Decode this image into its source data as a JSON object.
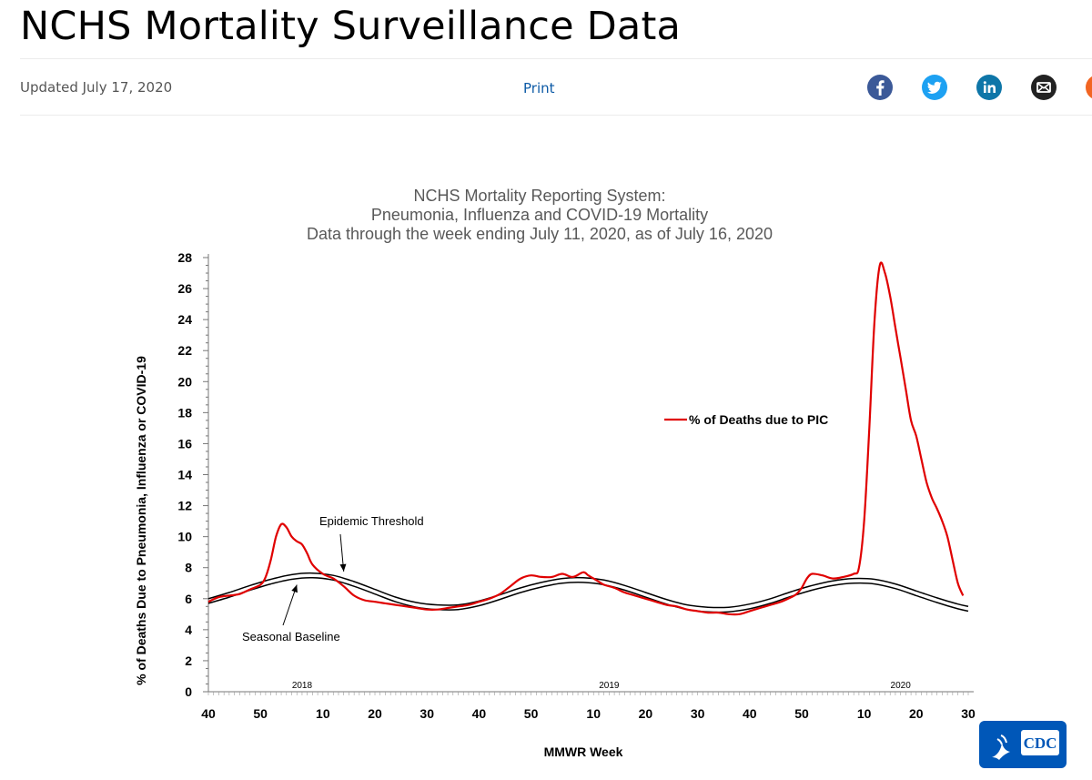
{
  "page": {
    "title": "NCHS Mortality Surveillance Data",
    "updated": "Updated July 17, 2020",
    "print_label": "Print"
  },
  "share": [
    {
      "name": "facebook-icon",
      "color": "#3b5998"
    },
    {
      "name": "twitter-icon",
      "color": "#1da1f2"
    },
    {
      "name": "linkedin-icon",
      "color": "#0e76a8"
    },
    {
      "name": "email-icon",
      "color": "#222222"
    },
    {
      "name": "syndicate-icon",
      "color": "#f26522"
    }
  ],
  "logo": {
    "text": "CDC",
    "color": "#0057b8"
  },
  "chart_data": {
    "type": "line",
    "title_lines": [
      "NCHS Mortality Reporting System:",
      "Pneumonia, Influenza and COVID-19 Mortality",
      "Data through the week ending July 11, 2020, as of July 16, 2020"
    ],
    "xlabel": "MMWR Week",
    "ylabel": "% of Deaths Due to Pneumonia, Influenza or  COVID-19",
    "ylim": [
      0,
      28
    ],
    "yticks": [
      0,
      2,
      4,
      6,
      8,
      10,
      12,
      14,
      16,
      18,
      20,
      22,
      24,
      26,
      28
    ],
    "xlim": [
      0,
      146
    ],
    "xticks": [
      {
        "x": 0,
        "label": "40"
      },
      {
        "x": 10,
        "label": "50"
      },
      {
        "x": 22,
        "label": "10"
      },
      {
        "x": 32,
        "label": "20"
      },
      {
        "x": 42,
        "label": "30"
      },
      {
        "x": 52,
        "label": "40"
      },
      {
        "x": 62,
        "label": "50"
      },
      {
        "x": 74,
        "label": "10"
      },
      {
        "x": 84,
        "label": "20"
      },
      {
        "x": 94,
        "label": "30"
      },
      {
        "x": 104,
        "label": "40"
      },
      {
        "x": 114,
        "label": "50"
      },
      {
        "x": 126,
        "label": "10"
      },
      {
        "x": 136,
        "label": "20"
      },
      {
        "x": 146,
        "label": "30"
      }
    ],
    "year_labels": [
      {
        "x": 18,
        "label": "2018"
      },
      {
        "x": 77,
        "label": "2019"
      },
      {
        "x": 133,
        "label": "2020"
      }
    ],
    "grid": false,
    "legend_position": "right",
    "series": [
      {
        "name": "% of Deaths due to PIC",
        "color": "#e00000",
        "x": [
          0,
          2,
          4,
          6,
          8,
          10,
          11,
          12,
          13,
          14,
          15,
          16,
          17,
          18,
          19,
          20,
          22,
          24,
          26,
          28,
          30,
          32,
          34,
          36,
          38,
          40,
          42,
          44,
          46,
          48,
          50,
          52,
          54,
          56,
          58,
          60,
          62,
          64,
          66,
          68,
          70,
          72,
          73,
          74,
          75,
          76,
          78,
          80,
          82,
          84,
          86,
          88,
          90,
          92,
          94,
          96,
          98,
          100,
          102,
          104,
          106,
          108,
          110,
          112,
          113,
          114,
          115,
          116,
          118,
          120,
          122,
          124,
          125,
          126,
          127,
          128,
          129,
          130,
          131,
          132,
          133,
          134,
          135,
          136,
          137,
          138,
          139,
          140,
          141,
          142,
          143,
          144,
          145
        ],
        "y": [
          5.8,
          6.1,
          6.2,
          6.3,
          6.6,
          6.9,
          7.4,
          8.5,
          10.0,
          10.8,
          10.6,
          10.0,
          9.7,
          9.5,
          8.9,
          8.2,
          7.6,
          7.3,
          6.8,
          6.2,
          5.9,
          5.8,
          5.7,
          5.6,
          5.5,
          5.4,
          5.3,
          5.3,
          5.4,
          5.5,
          5.6,
          5.8,
          6.0,
          6.3,
          6.8,
          7.3,
          7.5,
          7.4,
          7.4,
          7.6,
          7.4,
          7.7,
          7.5,
          7.3,
          7.1,
          6.9,
          6.7,
          6.4,
          6.2,
          6.0,
          5.8,
          5.6,
          5.5,
          5.3,
          5.2,
          5.1,
          5.1,
          5.0,
          5.0,
          5.2,
          5.4,
          5.6,
          5.8,
          6.1,
          6.3,
          6.7,
          7.3,
          7.6,
          7.5,
          7.3,
          7.4,
          7.6,
          8.0,
          11.0,
          17.0,
          24.0,
          27.5,
          27.0,
          25.5,
          23.5,
          21.5,
          19.5,
          17.5,
          16.5,
          15.0,
          13.5,
          12.5,
          11.8,
          11.0,
          10.0,
          8.5,
          7.0,
          6.2
        ]
      },
      {
        "name": "Epidemic Threshold",
        "color": "#000000",
        "x": [
          0,
          4,
          8,
          12,
          16,
          20,
          24,
          28,
          32,
          36,
          40,
          44,
          48,
          52,
          56,
          60,
          64,
          68,
          72,
          76,
          80,
          84,
          88,
          92,
          96,
          100,
          104,
          108,
          112,
          116,
          120,
          124,
          128,
          132,
          136,
          140,
          144,
          146
        ],
        "y": [
          6.0,
          6.4,
          6.85,
          7.25,
          7.55,
          7.65,
          7.5,
          7.1,
          6.6,
          6.1,
          5.75,
          5.6,
          5.6,
          5.85,
          6.25,
          6.7,
          7.05,
          7.3,
          7.35,
          7.2,
          6.85,
          6.4,
          5.95,
          5.6,
          5.45,
          5.45,
          5.65,
          6.0,
          6.45,
          6.85,
          7.15,
          7.3,
          7.25,
          6.95,
          6.5,
          6.05,
          5.65,
          5.5
        ]
      },
      {
        "name": "Seasonal Baseline",
        "color": "#000000",
        "x": [
          0,
          4,
          8,
          12,
          16,
          20,
          24,
          28,
          32,
          36,
          40,
          44,
          48,
          52,
          56,
          60,
          64,
          68,
          72,
          76,
          80,
          84,
          88,
          92,
          96,
          100,
          104,
          108,
          112,
          116,
          120,
          124,
          128,
          132,
          136,
          140,
          144,
          146
        ],
        "y": [
          5.7,
          6.1,
          6.55,
          6.95,
          7.25,
          7.35,
          7.2,
          6.8,
          6.3,
          5.8,
          5.45,
          5.3,
          5.3,
          5.55,
          5.95,
          6.4,
          6.75,
          7.0,
          7.05,
          6.9,
          6.55,
          6.1,
          5.65,
          5.3,
          5.15,
          5.15,
          5.35,
          5.7,
          6.15,
          6.55,
          6.85,
          7.0,
          6.95,
          6.65,
          6.2,
          5.75,
          5.35,
          5.2
        ]
      }
    ],
    "annotations": [
      {
        "text": "Epidemic Threshold",
        "target_x": 26,
        "target_y": 7.4
      },
      {
        "text": "Seasonal Baseline",
        "target_x": 17,
        "target_y": 7.25
      }
    ]
  }
}
